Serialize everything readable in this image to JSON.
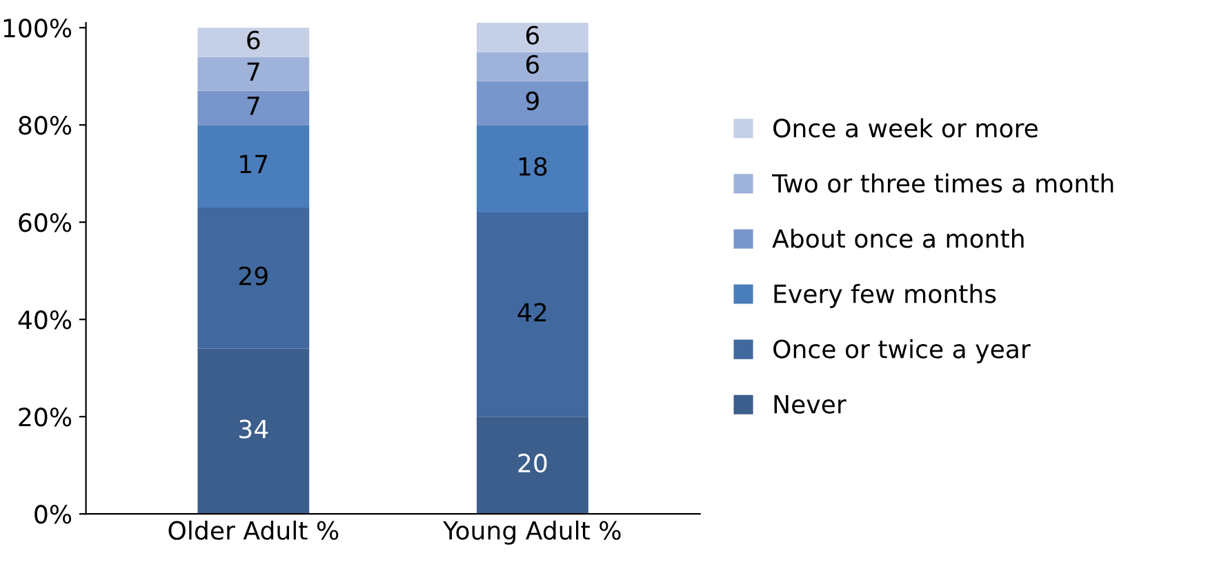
{
  "chart_data": {
    "type": "bar",
    "stacked": true,
    "categories": [
      "Older Adult %",
      "Young Adult %"
    ],
    "series": [
      {
        "name": "Never",
        "color": "#3b5e8c",
        "values": [
          34,
          20
        ]
      },
      {
        "name": "Once or twice a year",
        "color": "#41699f",
        "values": [
          29,
          42
        ]
      },
      {
        "name": "Every few months",
        "color": "#4a7dbb",
        "values": [
          17,
          18
        ]
      },
      {
        "name": "About once a month",
        "color": "#7896cb",
        "values": [
          7,
          9
        ]
      },
      {
        "name": "Two or three times a month",
        "color": "#9fb2d9",
        "values": [
          7,
          6
        ]
      },
      {
        "name": "Once a week or more",
        "color": "#c5d0e6",
        "values": [
          6,
          6
        ]
      }
    ],
    "ylim": [
      0,
      101
    ],
    "yticks": [
      {
        "value": 0,
        "label": "0%"
      },
      {
        "value": 20,
        "label": "20%"
      },
      {
        "value": 40,
        "label": "40%"
      },
      {
        "value": 60,
        "label": "60%"
      },
      {
        "value": 80,
        "label": "80%"
      },
      {
        "value": 100,
        "label": "100%"
      }
    ],
    "data_labels": true,
    "legend": "right",
    "grid": false
  }
}
